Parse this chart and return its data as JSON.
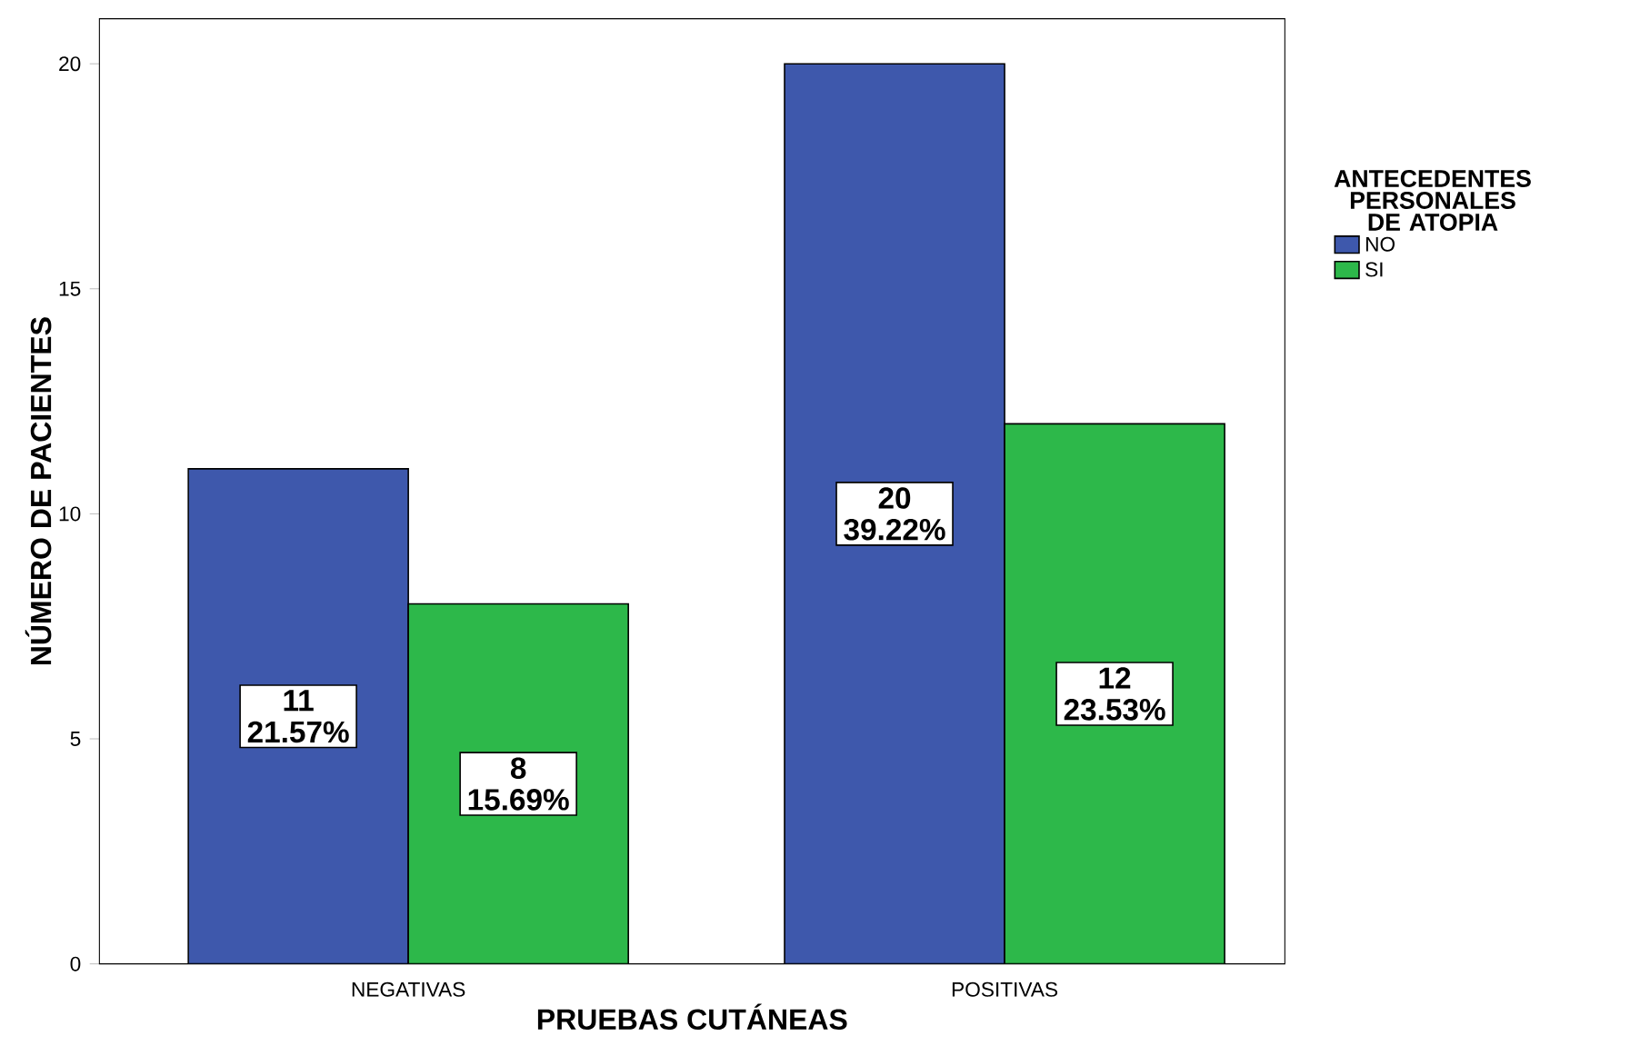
{
  "chart_data": {
    "type": "bar",
    "xlabel": "PRUEBAS CUTÁNEAS",
    "ylabel": "NÚMERO DE PACIENTES",
    "legend_title": "ANTECEDENTES PERSONALES DE ATOPIA",
    "categories": [
      "NEGATIVAS",
      "POSITIVAS"
    ],
    "series": [
      {
        "name": "NO",
        "color": "#3e58ac",
        "values": [
          11,
          20
        ],
        "value_labels": [
          "11 21.57%",
          "20 39.22%"
        ]
      },
      {
        "name": "SI",
        "color": "#2db84a",
        "values": [
          8,
          12
        ],
        "value_labels": [
          "8 15.69%",
          "12 23.53%"
        ]
      }
    ],
    "ylim": [
      0,
      21
    ],
    "yticks": [
      0,
      5,
      10,
      15,
      20
    ],
    "legend": "right"
  }
}
